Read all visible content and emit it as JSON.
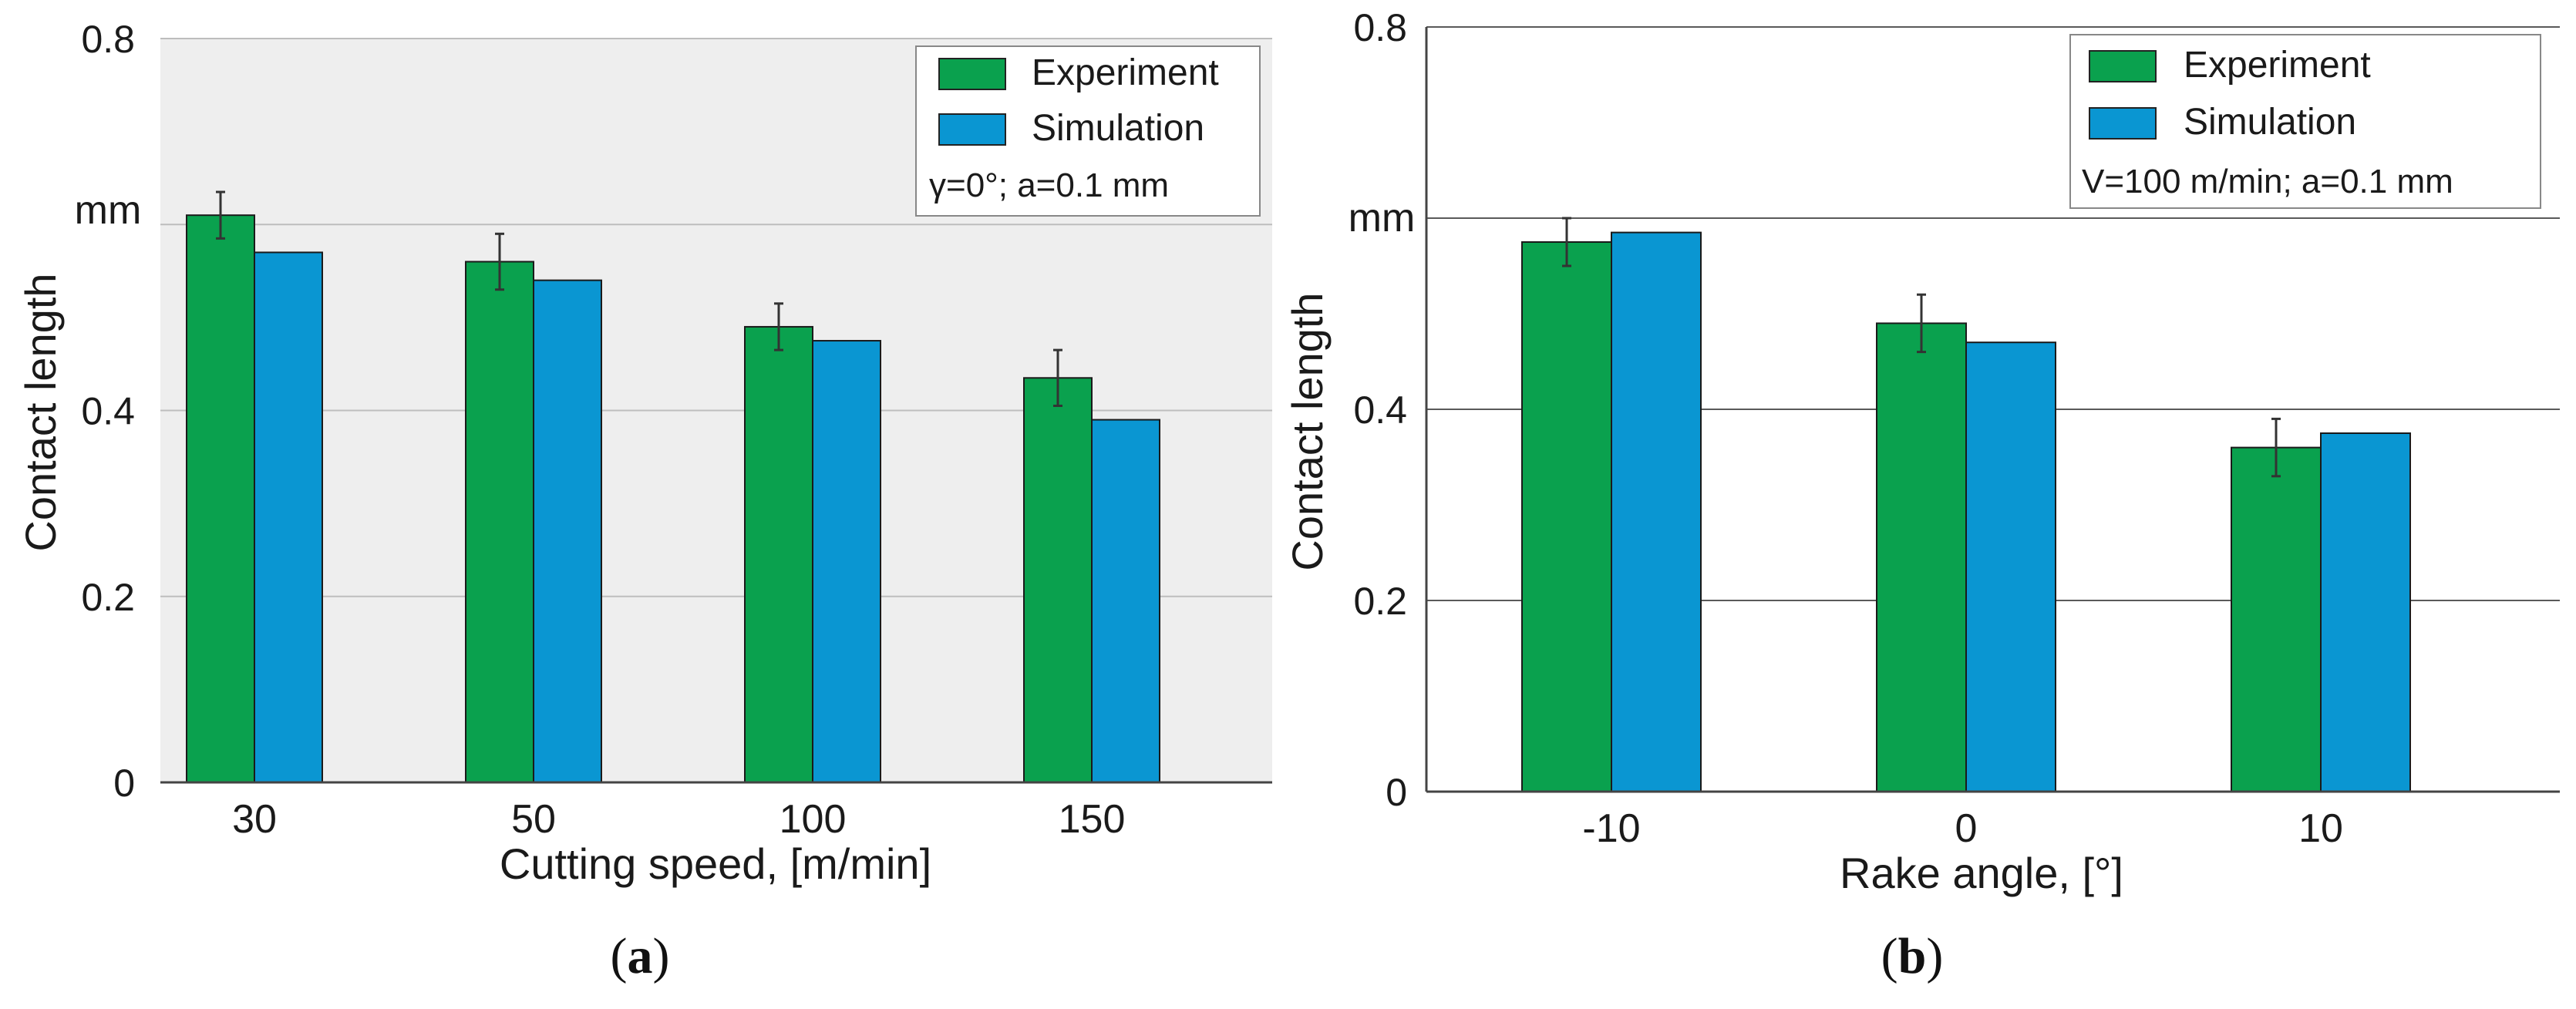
{
  "colors": {
    "experiment": "#0aa14e",
    "simulation": "#0a96d2",
    "plot_bg_a": "#eeeeee",
    "plot_bg_b": "#ffffff"
  },
  "legend": {
    "experiment": "Experiment",
    "simulation": "Simulation"
  },
  "chart_data": [
    {
      "type": "bar",
      "panel": "a",
      "caption_letter": "a",
      "categories": [
        "30",
        "50",
        "100",
        "150"
      ],
      "series": [
        {
          "name": "Experiment",
          "values": [
            0.61,
            0.56,
            0.49,
            0.435
          ],
          "errors": [
            0.025,
            0.03,
            0.025,
            0.03
          ]
        },
        {
          "name": "Simulation",
          "values": [
            0.57,
            0.54,
            0.475,
            0.39
          ]
        }
      ],
      "xlabel": "Cutting speed, [m/min]",
      "ylabel": "Contact length",
      "yunit": "mm",
      "ylim": [
        0,
        0.8
      ],
      "yticks": [
        "0",
        "0.2",
        "0.4",
        "0.8"
      ],
      "condition_note": "γ=0°; a=0.1 mm",
      "grid": true,
      "legend_position": "top-right"
    },
    {
      "type": "bar",
      "panel": "b",
      "caption_letter": "b",
      "categories": [
        "-10",
        "0",
        "10"
      ],
      "series": [
        {
          "name": "Experiment",
          "values": [
            0.575,
            0.49,
            0.36
          ],
          "errors": [
            0.025,
            0.03,
            0.03
          ]
        },
        {
          "name": "Simulation",
          "values": [
            0.585,
            0.47,
            0.375
          ]
        }
      ],
      "xlabel": "Rake angle, [°]",
      "ylabel": "Contact length",
      "yunit": "mm",
      "ylim": [
        0,
        0.8
      ],
      "yticks": [
        "0",
        "0.2",
        "0.4",
        "0.8"
      ],
      "condition_note": "V=100 m/min; a=0.1 mm",
      "grid": true,
      "legend_position": "top-right"
    }
  ]
}
